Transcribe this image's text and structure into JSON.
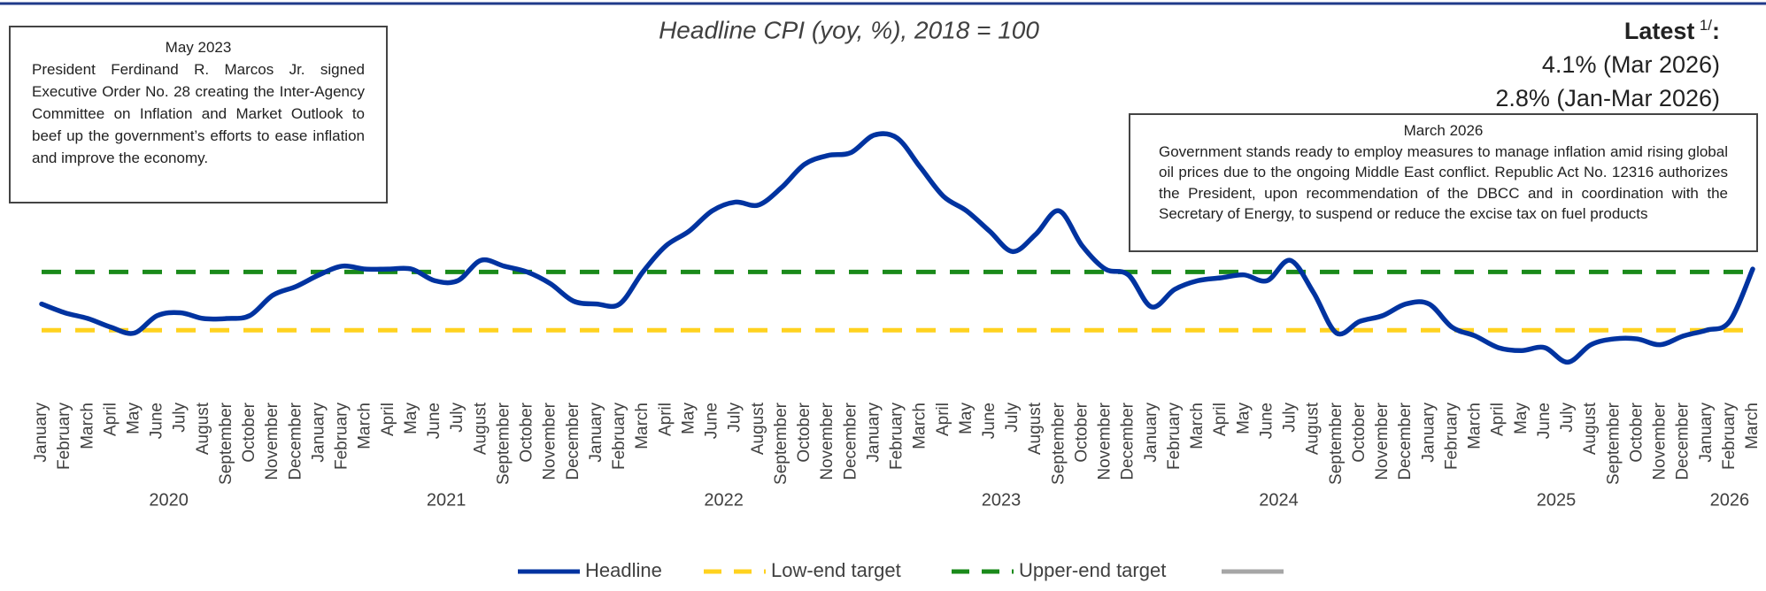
{
  "chart_data": {
    "type": "line",
    "title": "Headline CPI (yoy, %), 2018 = 100",
    "categories": [
      "January",
      "February",
      "March",
      "April",
      "May",
      "June",
      "July",
      "August",
      "September",
      "October",
      "November",
      "December",
      "January",
      "February",
      "March",
      "April",
      "May",
      "June",
      "July",
      "August",
      "September",
      "October",
      "November",
      "December",
      "January",
      "February",
      "March",
      "April",
      "May",
      "June",
      "July",
      "August",
      "September",
      "October",
      "November",
      "December",
      "January",
      "February",
      "March",
      "April",
      "May",
      "June",
      "July",
      "August",
      "September",
      "October",
      "November",
      "December",
      "January",
      "February",
      "March",
      "April",
      "May",
      "June",
      "July",
      "August",
      "September",
      "October",
      "November",
      "December",
      "January",
      "February",
      "March",
      "April",
      "May",
      "June",
      "July",
      "August",
      "September",
      "October",
      "November",
      "December",
      "January",
      "February",
      "March"
    ],
    "year_groups": [
      "2020",
      "2021",
      "2022",
      "2023",
      "2024",
      "2025",
      "2026"
    ],
    "ylim": [
      0,
      10
    ],
    "series": [
      {
        "name": "Headline",
        "color": "#0033a0",
        "dash": false,
        "values": [
          2.9,
          2.6,
          2.4,
          2.1,
          1.9,
          2.5,
          2.6,
          2.4,
          2.4,
          2.5,
          3.2,
          3.5,
          3.9,
          4.2,
          4.1,
          4.1,
          4.1,
          3.7,
          3.7,
          4.4,
          4.2,
          4.0,
          3.6,
          3.0,
          2.9,
          2.9,
          4.0,
          4.9,
          5.4,
          6.1,
          6.4,
          6.3,
          6.9,
          7.7,
          8.0,
          8.1,
          8.7,
          8.6,
          7.6,
          6.6,
          6.1,
          5.4,
          4.7,
          5.3,
          6.1,
          4.9,
          4.1,
          3.9,
          2.8,
          3.4,
          3.7,
          3.8,
          3.9,
          3.7,
          4.4,
          3.3,
          1.9,
          2.3,
          2.5,
          2.9,
          2.9,
          2.1,
          1.8,
          1.4,
          1.3,
          1.4,
          0.9,
          1.5,
          1.7,
          1.7,
          1.5,
          1.8,
          2.0,
          2.3,
          4.1
        ]
      },
      {
        "name": "Low-end target",
        "color": "#ffd21f",
        "dash": true,
        "values": [
          2,
          2,
          2,
          2,
          2,
          2,
          2,
          2,
          2,
          2,
          2,
          2,
          2,
          2,
          2,
          2,
          2,
          2,
          2,
          2,
          2,
          2,
          2,
          2,
          2,
          2,
          2,
          2,
          2,
          2,
          2,
          2,
          2,
          2,
          2,
          2,
          2,
          2,
          2,
          2,
          2,
          2,
          2,
          2,
          2,
          2,
          2,
          2,
          2,
          2,
          2,
          2,
          2,
          2,
          2,
          2,
          2,
          2,
          2,
          2,
          2,
          2,
          2,
          2,
          2,
          2,
          2,
          2,
          2,
          2,
          2,
          2,
          2,
          2,
          2
        ]
      },
      {
        "name": "Upper-end target",
        "color": "#1a8a1a",
        "dash": true,
        "values": [
          4,
          4,
          4,
          4,
          4,
          4,
          4,
          4,
          4,
          4,
          4,
          4,
          4,
          4,
          4,
          4,
          4,
          4,
          4,
          4,
          4,
          4,
          4,
          4,
          4,
          4,
          4,
          4,
          4,
          4,
          4,
          4,
          4,
          4,
          4,
          4,
          4,
          4,
          4,
          4,
          4,
          4,
          4,
          4,
          4,
          4,
          4,
          4,
          4,
          4,
          4,
          4,
          4,
          4,
          4,
          4,
          4,
          4,
          4,
          4,
          4,
          4,
          4,
          4,
          4,
          4,
          4,
          4,
          4,
          4,
          4,
          4,
          4,
          4,
          4
        ]
      }
    ],
    "annotations": [
      {
        "title": "May 2023",
        "text": "President Ferdinand R. Marcos Jr. signed Executive Order  No. 28 creating the Inter-Agency Committee on Inflation and Market Outlook to beef up the government’s efforts to ease inflation and improve the economy."
      },
      {
        "title": "March 2026",
        "text": "Government stands ready to employ measures to manage inflation amid rising global oil prices due to the ongoing Middle East conflict. Republic Act No. 12316 authorizes the President, upon recommendation of the DBCC and in coordination with the Secretary of Energy, to suspend or reduce the excise tax on fuel products"
      }
    ],
    "latest": {
      "label": "Latest",
      "footnote": "1/",
      "suffix": ":",
      "lines": [
        "4.1% (Mar 2026)",
        "2.8% (Jan-Mar 2026)"
      ]
    }
  }
}
